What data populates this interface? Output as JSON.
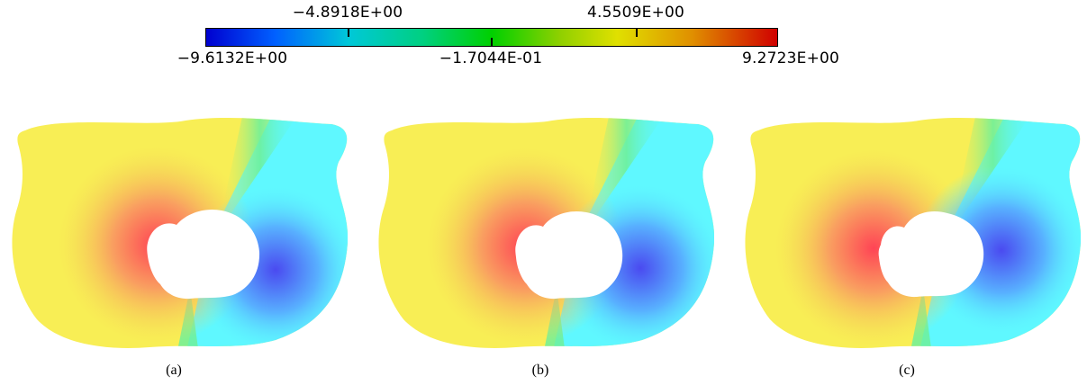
{
  "colorbar": {
    "min_label": "−9.6132E+00",
    "mid_label": "−1.7044E-01",
    "max_label": "9.2723E+00",
    "upper_left_label": "−4.8918E+00",
    "upper_right_label": "4.5509E+00",
    "colors": [
      "#0000d0",
      "#00c8d8",
      "#00d000",
      "#e0e000",
      "#d00000"
    ]
  },
  "panels": [
    {
      "caption": "(a)"
    },
    {
      "caption": "(b)"
    },
    {
      "caption": "(c)"
    }
  ],
  "field_colors": {
    "yellow": "#f8ee55",
    "yellow_dark": "#f4dc55",
    "red": "#ff4455",
    "cyan": "#5ff8ff",
    "green": "#6ef09a",
    "blue": "#4a4af0",
    "hole": "#ffffff"
  }
}
